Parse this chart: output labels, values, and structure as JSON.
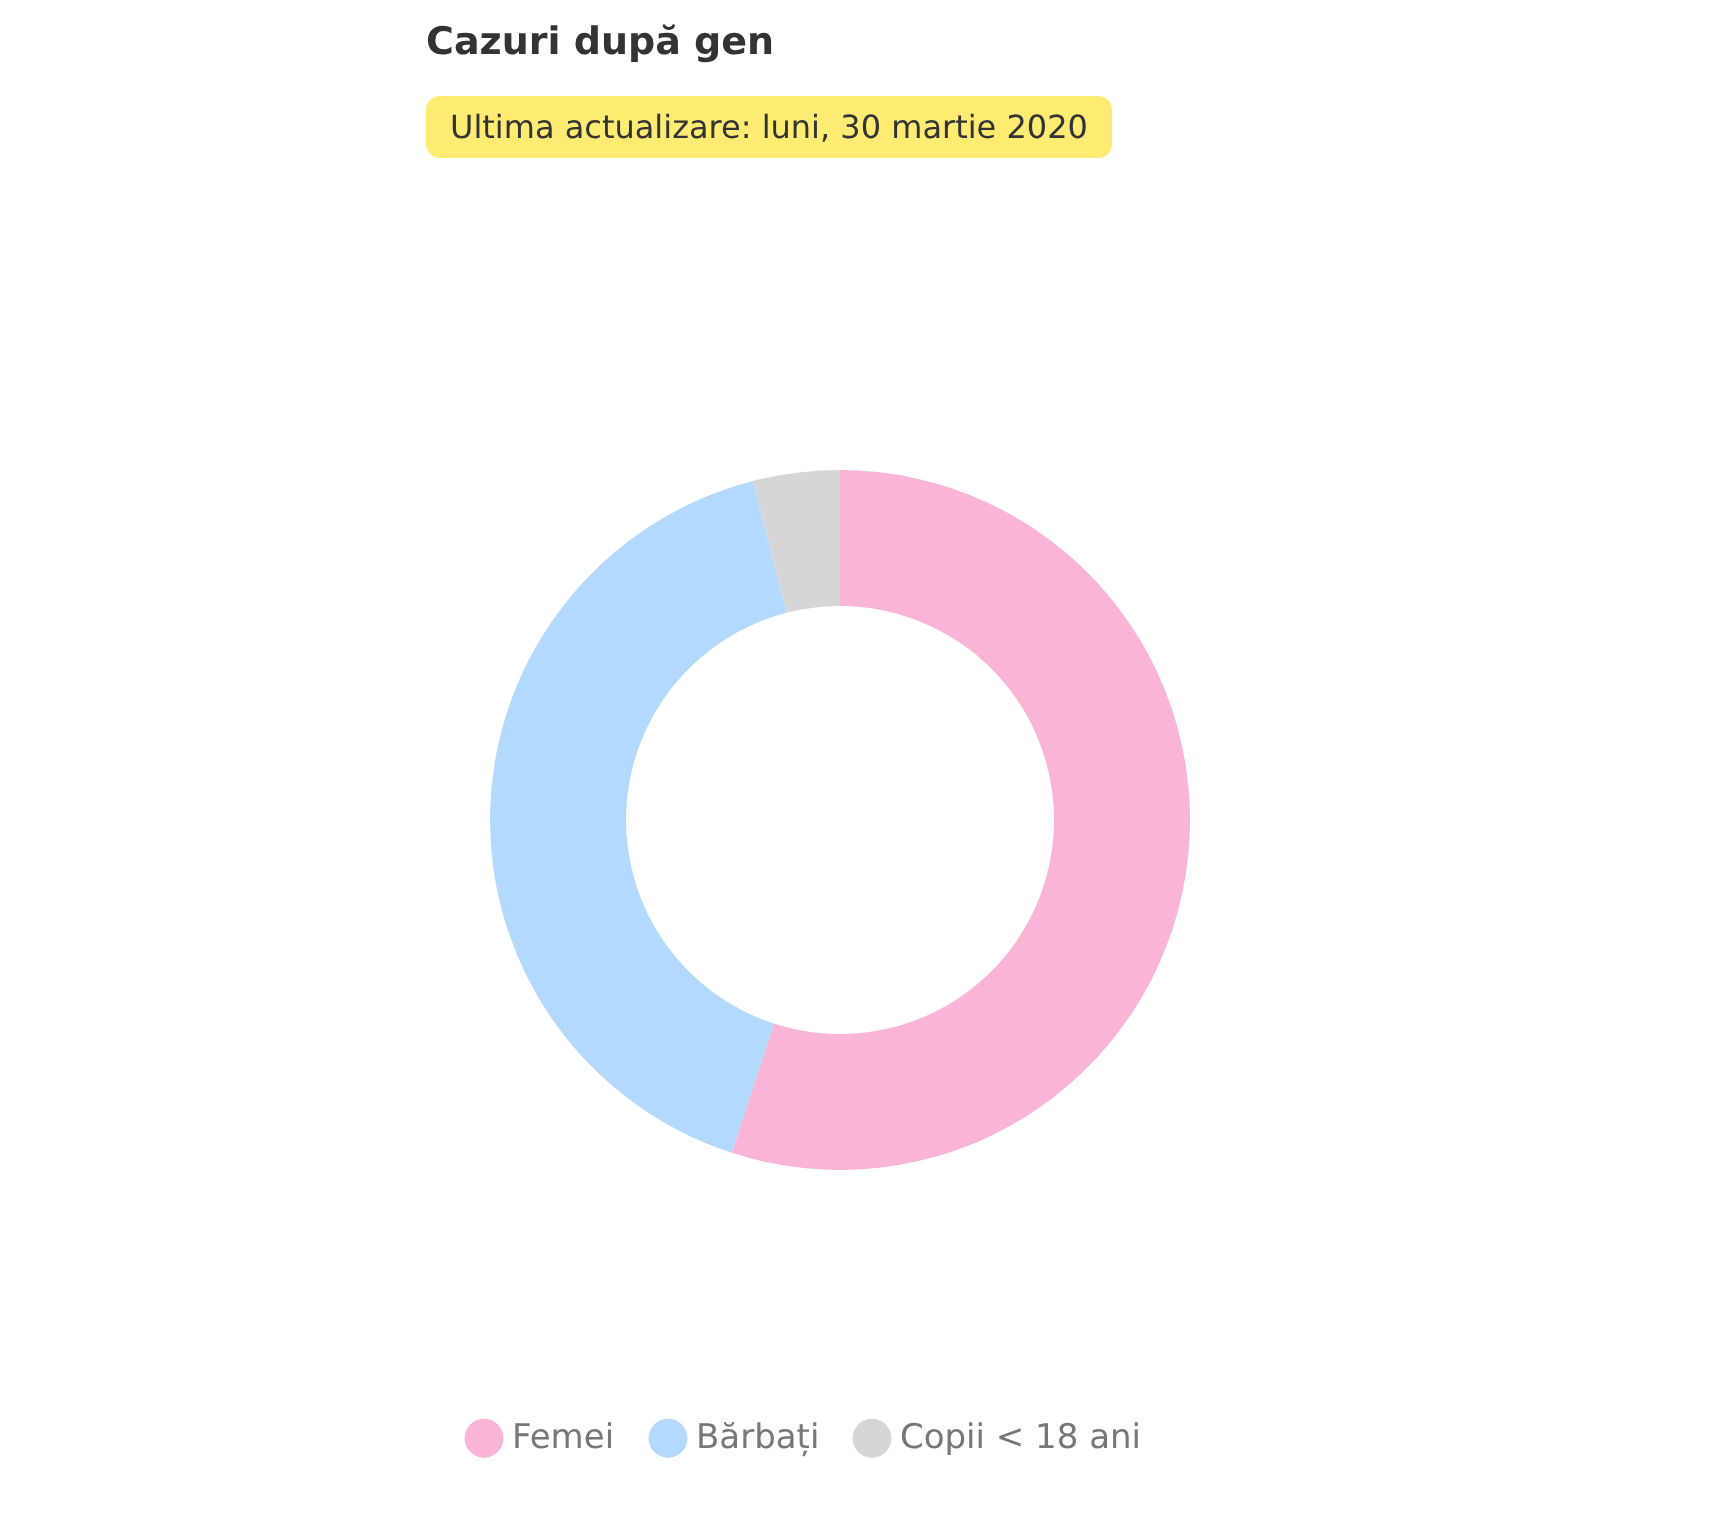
{
  "chart_data": {
    "type": "donut",
    "title": "Cazuri după gen",
    "subtitle": "Ultima actualizare: luni, 30 martie 2020",
    "categories": [
      "Femei",
      "Bărbați",
      "Copii < 18 ani"
    ],
    "values": [
      55,
      41,
      4
    ],
    "colors": [
      "#f9b4d6",
      "#b3d9fe",
      "#d6d6d6"
    ],
    "legend": "bottom"
  }
}
